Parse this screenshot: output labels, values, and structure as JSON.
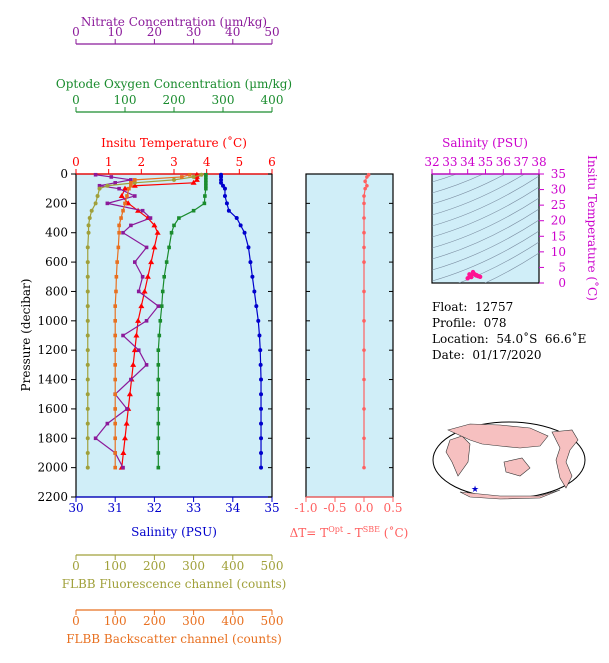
{
  "axes": {
    "nitrate": {
      "label": "Nitrate Concentration (µm/kg)",
      "ticks": [
        0,
        10,
        20,
        30,
        40,
        50
      ],
      "range": [
        0,
        50
      ],
      "color": "#8b1a9a"
    },
    "oxygen": {
      "label": "Optode Oxygen Concentration (µm/kg)",
      "ticks": [
        0,
        100,
        200,
        300,
        400
      ],
      "range": [
        0,
        400
      ],
      "color": "#1a8c2e"
    },
    "temperature": {
      "label": "Insitu Temperature (˚C)",
      "ticks": [
        0,
        1,
        2,
        3,
        4,
        5,
        6
      ],
      "range": [
        0,
        6
      ],
      "color": "#ff0000"
    },
    "salinity": {
      "label": "Salinity (PSU)",
      "ticks": [
        30,
        31,
        32,
        33,
        34,
        35
      ],
      "range": [
        30,
        35
      ],
      "color": "#0000cc"
    },
    "pressure": {
      "label": "Pressure (decibar)",
      "ticks": [
        0,
        200,
        400,
        600,
        800,
        1000,
        1200,
        1400,
        1600,
        1800,
        2000,
        2200
      ],
      "range": [
        0,
        2200
      ]
    },
    "fluorescence": {
      "label": "FLBB Fluorescence channel (counts)",
      "ticks": [
        0,
        100,
        200,
        300,
        400,
        500
      ],
      "range": [
        0,
        500
      ],
      "color": "#a0a03a"
    },
    "backscatter": {
      "label": "FLBB Backscatter channel (counts)",
      "ticks": [
        0,
        100,
        200,
        300,
        400,
        500
      ],
      "range": [
        0,
        500
      ],
      "color": "#e87020"
    },
    "delta": {
      "label_main": "ΔT= T",
      "label_sup1": "Opt",
      "label_mid": " - T",
      "label_sup2": "SBE",
      "label_end": " (˚C)",
      "ticks": [
        "-1.0",
        "-0.5",
        "0.0",
        "0.5"
      ],
      "range": [
        -1.0,
        0.5
      ],
      "color": "#ff6060"
    },
    "ts_salinity": {
      "label": "Salinity (PSU)",
      "ticks": [
        32,
        33,
        34,
        35,
        36,
        37,
        38
      ],
      "range": [
        32,
        38
      ],
      "color": "#cc00cc"
    },
    "ts_temperature": {
      "label": "Insitu Temperature (˚C)",
      "ticks": [
        0,
        5,
        10,
        15,
        20,
        25,
        30,
        35
      ],
      "range": [
        0,
        35
      ],
      "color": "#cc00cc"
    }
  },
  "info": {
    "float": "Float:  12757",
    "profile": "Profile:  078",
    "location": "Location:  54.0˚S  66.6˚E",
    "date": "Date:  01/17/2020"
  },
  "chart_data": {
    "type": "line",
    "pressure": [
      5,
      20,
      40,
      60,
      80,
      100,
      150,
      200,
      250,
      300,
      350,
      400,
      500,
      600,
      700,
      800,
      900,
      1000,
      1100,
      1200,
      1300,
      1400,
      1500,
      1600,
      1700,
      1800,
      1900,
      2000
    ],
    "series": [
      {
        "axis": "temperature",
        "color": "#ff0000",
        "values": [
          3.7,
          3.7,
          3.7,
          3.6,
          1.8,
          1.5,
          1.4,
          1.6,
          1.9,
          2.2,
          2.4,
          2.5,
          2.4,
          2.3,
          2.2,
          2.1,
          2.0,
          1.9,
          1.85,
          1.8,
          1.75,
          1.7,
          1.65,
          1.6,
          1.55,
          1.5,
          1.45,
          1.4
        ]
      },
      {
        "axis": "salinity",
        "color": "#0000cc",
        "values": [
          33.7,
          33.7,
          33.7,
          33.7,
          33.75,
          33.8,
          33.8,
          33.85,
          33.9,
          34.1,
          34.2,
          34.3,
          34.4,
          34.45,
          34.5,
          34.55,
          34.6,
          34.65,
          34.68,
          34.7,
          34.71,
          34.72,
          34.72,
          34.72,
          34.72,
          34.72,
          34.72,
          34.72
        ]
      },
      {
        "axis": "oxygen",
        "color": "#1a8c2e",
        "values": [
          265,
          265,
          265,
          265,
          265,
          265,
          263,
          262,
          240,
          210,
          200,
          195,
          190,
          185,
          180,
          177,
          175,
          172,
          170,
          168,
          168,
          168,
          168,
          168,
          168,
          168,
          168,
          168
        ]
      },
      {
        "axis": "nitrate",
        "color": "#8b1a9a",
        "values": [
          5,
          9,
          14,
          10,
          6,
          11,
          15,
          8,
          17,
          19,
          14,
          12,
          18,
          15,
          17,
          16,
          21,
          18,
          12,
          16,
          18,
          14,
          10,
          13,
          8,
          5,
          10,
          12
        ]
      },
      {
        "axis": "fluorescence",
        "color": "#a0a03a",
        "values": [
          320,
          300,
          250,
          150,
          80,
          60,
          55,
          50,
          40,
          35,
          32,
          32,
          30,
          30,
          30,
          30,
          30,
          30,
          30,
          30,
          30,
          30,
          30,
          30,
          30,
          30,
          30,
          30
        ]
      },
      {
        "axis": "backscatter",
        "color": "#e87020",
        "values": [
          290,
          270,
          150,
          140,
          140,
          135,
          130,
          125,
          120,
          115,
          110,
          110,
          108,
          105,
          103,
          102,
          100,
          100,
          100,
          100,
          100,
          100,
          100,
          100,
          100,
          100,
          100,
          100
        ]
      }
    ],
    "delta_series": {
      "color": "#ff6060",
      "pressure": [
        5,
        20,
        50,
        80,
        100,
        150,
        200,
        300,
        400,
        500,
        600,
        800,
        1000,
        1200,
        1400,
        1600,
        1800,
        2000
      ],
      "values": [
        0.08,
        0.05,
        0.02,
        0.05,
        0.02,
        0.0,
        0.0,
        0.0,
        0.0,
        0.0,
        0.0,
        0.0,
        0.0,
        0.0,
        0.0,
        0.0,
        0.0,
        0.0
      ]
    },
    "ts_points": {
      "color": "#ff1493",
      "salinity": [
        34.0,
        34.1,
        34.2,
        34.3,
        34.4,
        34.5,
        34.6,
        34.7,
        34.3,
        34.1,
        34.2,
        34.5
      ],
      "temperature": [
        1.5,
        2.0,
        2.5,
        3.0,
        2.8,
        2.5,
        2.2,
        2.0,
        3.5,
        2.8,
        1.9,
        2.4
      ]
    }
  }
}
